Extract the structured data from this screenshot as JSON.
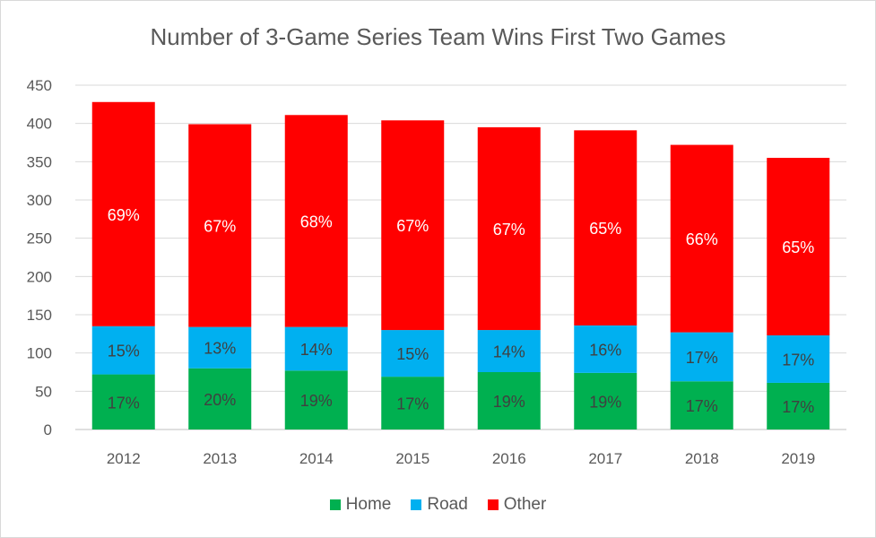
{
  "chart_data": {
    "type": "bar",
    "stacked": true,
    "title": "Number of 3-Game Series Team Wins First Two Games",
    "categories": [
      "2012",
      "2013",
      "2014",
      "2015",
      "2016",
      "2017",
      "2018",
      "2019"
    ],
    "series": [
      {
        "name": "Home",
        "color": "#00b050",
        "values": [
          72,
          80,
          77,
          69,
          75,
          74,
          63,
          61
        ],
        "labels": [
          "17%",
          "20%",
          "19%",
          "17%",
          "19%",
          "19%",
          "17%",
          "17%"
        ]
      },
      {
        "name": "Road",
        "color": "#00b0f0",
        "values": [
          63,
          54,
          57,
          61,
          55,
          62,
          64,
          62
        ],
        "labels": [
          "15%",
          "13%",
          "14%",
          "15%",
          "14%",
          "16%",
          "17%",
          "17%"
        ]
      },
      {
        "name": "Other",
        "color": "#ff0000",
        "values": [
          293,
          265,
          277,
          274,
          265,
          255,
          245,
          232
        ],
        "labels": [
          "69%",
          "67%",
          "68%",
          "67%",
          "67%",
          "65%",
          "66%",
          "65%"
        ]
      }
    ],
    "ylim": [
      0,
      450
    ],
    "yticks": [
      "0",
      "50",
      "100",
      "150",
      "200",
      "250",
      "300",
      "350",
      "400",
      "450"
    ],
    "grid": true,
    "legend_position": "bottom"
  }
}
